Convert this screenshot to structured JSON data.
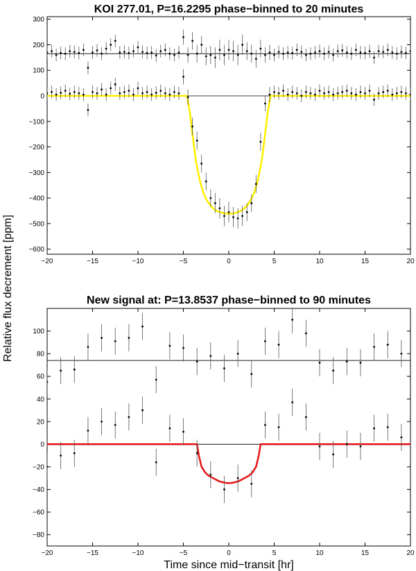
{
  "figure": {
    "shared_ylabel": "Relative flux decrement [ppm]",
    "shared_xlabel": "Time since mid−transit [hr]"
  },
  "chart_data": [
    {
      "type": "scatter",
      "title": "KOI 277.01, P=16.2295 phase−binned to 20 minutes",
      "xlim": [
        -20,
        20
      ],
      "ylim": [
        -620,
        310
      ],
      "xticks": [
        -20,
        -15,
        -10,
        -5,
        0,
        5,
        10,
        15,
        20
      ],
      "xtick_labels": [
        "−20",
        "−15",
        "−10",
        "−5",
        "0",
        "5",
        "10",
        "15",
        "20"
      ],
      "yticks": [
        -600,
        -500,
        -400,
        -300,
        -200,
        -100,
        0,
        100,
        200,
        300
      ],
      "ytick_labels": [
        "−600",
        "−500",
        "−400",
        "−300",
        "−200",
        "−100",
        "0",
        "100",
        "200",
        "300"
      ],
      "reference_lines": [
        0,
        165
      ],
      "model": {
        "color": "#ffee00",
        "x": [
          -20,
          -4.6,
          -4.3,
          -4.0,
          -3.6,
          -3.2,
          -2.8,
          -2.4,
          -2.0,
          -1.5,
          -1.0,
          -0.5,
          0,
          0.5,
          1.0,
          1.5,
          2.0,
          2.4,
          2.8,
          3.2,
          3.6,
          4.0,
          4.3,
          4.6,
          20
        ],
        "y": [
          0,
          0,
          -60,
          -150,
          -260,
          -330,
          -380,
          -410,
          -430,
          -447,
          -455,
          -460,
          -462,
          -460,
          -455,
          -447,
          -430,
          -410,
          -380,
          -330,
          -260,
          -150,
          -60,
          0,
          0
        ]
      },
      "series": [
        {
          "x": [
            -20.0,
            -19.5,
            -19.0,
            -18.5,
            -18.0,
            -17.5,
            -17.0,
            -16.5,
            -16.0,
            -15.5,
            -15.0,
            -14.5,
            -14.0,
            -13.5,
            -13.0,
            -12.5,
            -12.0,
            -11.5,
            -11.0,
            -10.5,
            -10.0,
            -9.5,
            -9.0,
            -8.5,
            -8.0,
            -7.5,
            -7.0,
            -6.5,
            -6.0,
            -5.5,
            -5.0,
            -4.5,
            -4.0,
            -3.5,
            -3.0,
            -2.5,
            -2.0,
            -1.5,
            -1.0,
            -0.5,
            0.0,
            0.5,
            1.0,
            1.5,
            2.0,
            2.5,
            3.0,
            3.5,
            4.0,
            4.5,
            5.0,
            5.5,
            6.0,
            6.5,
            7.0,
            7.5,
            8.0,
            8.5,
            9.0,
            9.5,
            10.0,
            10.5,
            11.0,
            11.5,
            12.0,
            12.5,
            13.0,
            13.5,
            14.0,
            14.5,
            15.0,
            15.5,
            16.0,
            16.5,
            17.0,
            17.5,
            18.0,
            18.5,
            19.0,
            19.5,
            20.0
          ],
          "y": [
            170,
            175,
            160,
            168,
            165,
            175,
            172,
            168,
            180,
            110,
            170,
            178,
            165,
            185,
            200,
            215,
            170,
            172,
            168,
            175,
            190,
            172,
            168,
            170,
            158,
            175,
            180,
            165,
            160,
            170,
            230,
            160,
            215,
            165,
            200,
            155,
            160,
            150,
            180,
            160,
            180,
            175,
            160,
            200,
            175,
            165,
            145,
            185,
            160,
            170,
            160,
            172,
            165,
            170,
            168,
            180,
            172,
            160,
            165,
            170,
            175,
            165,
            172,
            160,
            175,
            178,
            170,
            165,
            180,
            170,
            168,
            175,
            150,
            175,
            172,
            180,
            170,
            165,
            172,
            168,
            175
          ],
          "err": [
            25,
            25,
            25,
            25,
            25,
            25,
            25,
            25,
            25,
            25,
            25,
            25,
            25,
            25,
            25,
            25,
            25,
            25,
            25,
            25,
            25,
            25,
            25,
            25,
            25,
            25,
            25,
            25,
            25,
            25,
            30,
            30,
            35,
            35,
            35,
            35,
            35,
            40,
            40,
            40,
            40,
            40,
            40,
            40,
            35,
            35,
            35,
            35,
            30,
            30,
            25,
            25,
            25,
            25,
            25,
            25,
            25,
            25,
            25,
            25,
            25,
            25,
            25,
            25,
            25,
            25,
            25,
            25,
            25,
            25,
            25,
            25,
            25,
            25,
            25,
            25,
            25,
            25,
            25,
            25,
            25
          ]
        },
        {
          "x": [
            -20.0,
            -19.5,
            -19.0,
            -18.5,
            -18.0,
            -17.5,
            -17.0,
            -16.5,
            -16.0,
            -15.5,
            -15.0,
            -14.5,
            -14.0,
            -13.5,
            -13.0,
            -12.5,
            -12.0,
            -11.5,
            -11.0,
            -10.5,
            -10.0,
            -9.5,
            -9.0,
            -8.5,
            -8.0,
            -7.5,
            -7.0,
            -6.5,
            -6.0,
            -5.5,
            -5.0,
            -4.5,
            -4.0,
            -3.5,
            -3.0,
            -2.5,
            -2.0,
            -1.5,
            -1.0,
            -0.5,
            0.0,
            0.5,
            1.0,
            1.5,
            2.0,
            2.5,
            3.0,
            3.5,
            4.0,
            4.5,
            5.0,
            5.5,
            6.0,
            6.5,
            7.0,
            7.5,
            8.0,
            8.5,
            9.0,
            9.5,
            10.0,
            10.5,
            11.0,
            11.5,
            12.0,
            12.5,
            13.0,
            13.5,
            14.0,
            14.5,
            15.0,
            15.5,
            16.0,
            16.5,
            17.0,
            17.5,
            18.0,
            18.5,
            19.0,
            19.5,
            20.0
          ],
          "y": [
            10,
            15,
            5,
            12,
            20,
            8,
            15,
            10,
            5,
            -55,
            15,
            10,
            25,
            5,
            30,
            45,
            10,
            15,
            20,
            5,
            30,
            10,
            15,
            5,
            12,
            20,
            10,
            5,
            15,
            10,
            75,
            -5,
            -120,
            -175,
            -265,
            -335,
            -400,
            -420,
            -440,
            -470,
            -455,
            -475,
            -480,
            -470,
            -455,
            -420,
            -345,
            -180,
            -30,
            5,
            15,
            10,
            20,
            5,
            15,
            10,
            0,
            15,
            10,
            5,
            20,
            10,
            15,
            5,
            10,
            15,
            20,
            10,
            5,
            15,
            10,
            20,
            -15,
            10,
            15,
            20,
            5,
            10,
            15,
            10,
            5
          ],
          "err": [
            25,
            25,
            25,
            25,
            25,
            25,
            25,
            25,
            25,
            25,
            25,
            25,
            25,
            25,
            25,
            25,
            25,
            25,
            25,
            25,
            25,
            25,
            25,
            25,
            25,
            25,
            25,
            25,
            25,
            25,
            30,
            30,
            35,
            35,
            35,
            35,
            35,
            40,
            40,
            40,
            40,
            40,
            40,
            40,
            35,
            35,
            35,
            35,
            30,
            30,
            25,
            25,
            25,
            25,
            25,
            25,
            25,
            25,
            25,
            25,
            25,
            25,
            25,
            25,
            25,
            25,
            25,
            25,
            25,
            25,
            25,
            25,
            25,
            25,
            25,
            25,
            25,
            25,
            25,
            25,
            25
          ]
        }
      ]
    },
    {
      "type": "scatter",
      "title": "New signal at: P=13.8537 phase−binned to 90 minutes",
      "xlim": [
        -20,
        20
      ],
      "ylim": [
        -90,
        120
      ],
      "xticks": [
        -20,
        -15,
        -10,
        -5,
        0,
        5,
        10,
        15,
        20
      ],
      "xtick_labels": [
        "−20",
        "−15",
        "−10",
        "−5",
        "0",
        "5",
        "10",
        "15",
        "20"
      ],
      "yticks": [
        -80,
        -60,
        -40,
        -20,
        0,
        20,
        40,
        60,
        80,
        100
      ],
      "ytick_labels": [
        "−80",
        "−60",
        "−40",
        "−20",
        "0",
        "20",
        "40",
        "60",
        "80",
        "100"
      ],
      "reference_lines": [
        0,
        74
      ],
      "model": {
        "color": "#e41a1c",
        "x": [
          -20,
          -3.5,
          -3.3,
          -3.0,
          -2.6,
          -2.2,
          -1.5,
          -1.0,
          -0.5,
          0,
          0.5,
          1.0,
          1.5,
          2.2,
          2.6,
          3.0,
          3.3,
          3.5,
          20
        ],
        "y": [
          0,
          0,
          -10,
          -20,
          -25,
          -28,
          -31,
          -33,
          -34,
          -34.5,
          -34,
          -33,
          -31,
          -28,
          -25,
          -20,
          -10,
          0,
          0
        ]
      },
      "series": [
        {
          "x": [
            -20,
            -18.5,
            -17,
            -15.5,
            -14,
            -12.5,
            -11,
            -9.5,
            -8,
            -6.5,
            -5,
            -3.5,
            -2,
            -0.5,
            1,
            2.5,
            4,
            5.5,
            7,
            8.5,
            10,
            11.5,
            13,
            14.5,
            16,
            17.5,
            19
          ],
          "y": [
            55,
            65,
            66,
            86,
            94,
            91,
            94,
            104,
            57,
            87,
            85,
            73,
            78,
            67,
            80,
            62,
            91,
            88,
            110,
            98,
            72,
            65,
            73,
            72,
            86,
            88,
            80
          ],
          "err": [
            12,
            12,
            12,
            12,
            12,
            12,
            12,
            12,
            12,
            12,
            12,
            12,
            12,
            12,
            12,
            12,
            12,
            12,
            12,
            12,
            12,
            12,
            12,
            12,
            12,
            12,
            12
          ]
        },
        {
          "x": [
            -20,
            -18.5,
            -17,
            -15.5,
            -14,
            -12.5,
            -11,
            -9.5,
            -8,
            -6.5,
            -5,
            -3.5,
            -2,
            -0.5,
            1,
            2.5,
            4,
            5.5,
            7,
            8.5,
            10,
            11.5,
            13,
            14.5,
            16,
            17.5,
            19
          ],
          "y": [
            -20,
            -10,
            -8,
            12,
            20,
            17,
            24,
            30,
            -16,
            14,
            11,
            -8,
            -27,
            -40,
            -30,
            -35,
            17,
            15,
            37,
            24,
            -2,
            -9,
            0,
            -2,
            14,
            15,
            6
          ],
          "err": [
            12,
            12,
            12,
            12,
            12,
            12,
            12,
            12,
            12,
            12,
            12,
            12,
            12,
            12,
            12,
            12,
            12,
            12,
            12,
            12,
            12,
            12,
            12,
            12,
            12,
            12,
            12
          ]
        }
      ]
    }
  ]
}
